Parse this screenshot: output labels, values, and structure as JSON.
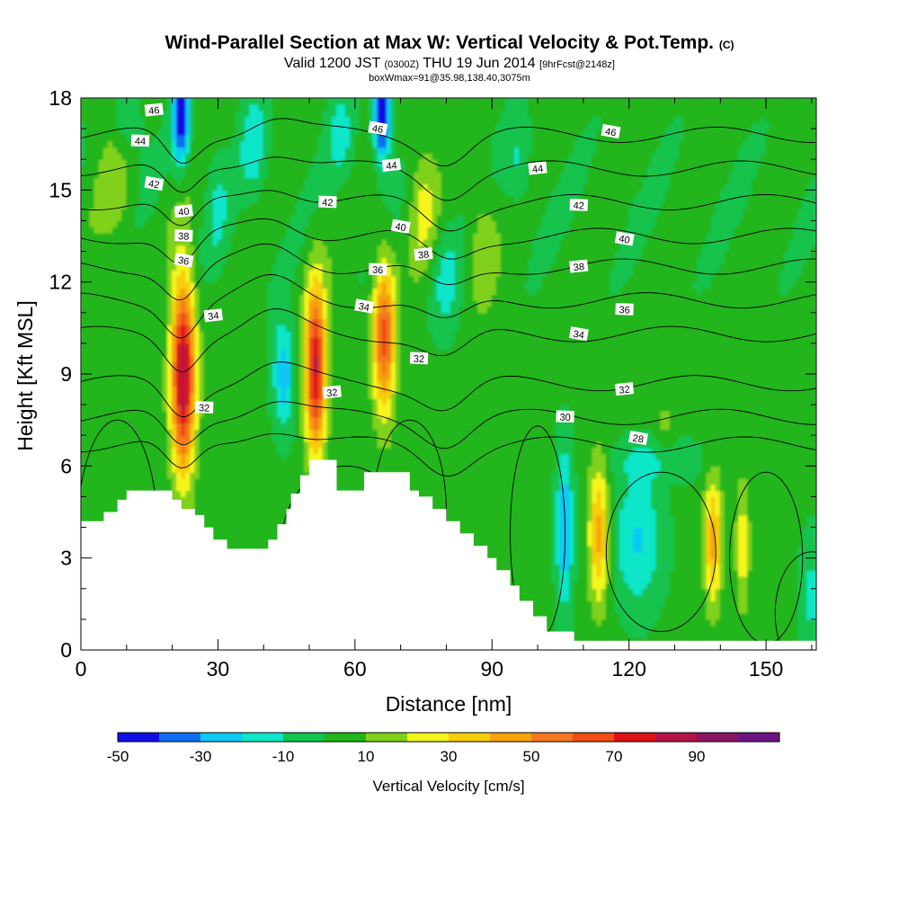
{
  "header": {
    "title_main": "Wind-Parallel Section at Max W: Vertical Velocity & Pot.Temp.",
    "title_suffix": "(C)",
    "valid_prefix": "Valid 1200 JST",
    "valid_zulu": "(0300Z)",
    "valid_date": "THU 19 Jun 2014",
    "forecast_info": "[9hrFcst@2148z]",
    "box_info": "boxWmax=91@35.98,138.40,3075m"
  },
  "chart_data": {
    "type": "contour",
    "xlabel": "Distance [nm]",
    "ylabel": "Height [Kft MSL]",
    "xlim": [
      0,
      161
    ],
    "ylim": [
      0,
      18
    ],
    "x_ticks": [
      0,
      30,
      60,
      90,
      120,
      150
    ],
    "y_ticks": [
      0,
      3,
      6,
      9,
      12,
      15,
      18
    ],
    "colorbar": {
      "label": "Vertical Velocity [cm/s]",
      "tick_labels": [
        "-50",
        "-30",
        "-10",
        "10",
        "30",
        "50",
        "70",
        "90"
      ],
      "levels": [
        -50,
        -40,
        -30,
        -20,
        -10,
        0,
        10,
        20,
        30,
        40,
        50,
        60,
        70,
        80,
        90,
        100
      ],
      "colors": [
        "#1010e6",
        "#0f6ef0",
        "#10c8f5",
        "#10e6c8",
        "#12c34e",
        "#22b51a",
        "#7fd11a",
        "#f5f51e",
        "#f7cd0c",
        "#f7a20c",
        "#f5781e",
        "#f04c14",
        "#dc1414",
        "#b41446",
        "#8c1464",
        "#6e1482"
      ]
    },
    "terrain_kft": [
      [
        0,
        4.2
      ],
      [
        5,
        4.5
      ],
      [
        8,
        4.9
      ],
      [
        10,
        5.2
      ],
      [
        19,
        5.2
      ],
      [
        20,
        4.9
      ],
      [
        22,
        4.6
      ],
      [
        25,
        4.4
      ],
      [
        27,
        4.0
      ],
      [
        29,
        3.6
      ],
      [
        32,
        3.3
      ],
      [
        39,
        3.3
      ],
      [
        41,
        3.6
      ],
      [
        43,
        4.1
      ],
      [
        45,
        4.6
      ],
      [
        46,
        5.1
      ],
      [
        48,
        5.7
      ],
      [
        50,
        6.2
      ],
      [
        55,
        6.2
      ],
      [
        56,
        5.2
      ],
      [
        61,
        5.2
      ],
      [
        62,
        5.8
      ],
      [
        71,
        5.8
      ],
      [
        72,
        5.2
      ],
      [
        74,
        5.0
      ],
      [
        77,
        4.6
      ],
      [
        80,
        4.2
      ],
      [
        83,
        3.8
      ],
      [
        86,
        3.4
      ],
      [
        89,
        3.0
      ],
      [
        91,
        2.6
      ],
      [
        94,
        2.1
      ],
      [
        96,
        1.6
      ],
      [
        99,
        1.1
      ],
      [
        102,
        0.6
      ],
      [
        107,
        0.6
      ],
      [
        108,
        0.3
      ],
      [
        161,
        0.3
      ]
    ],
    "updrafts": [
      {
        "x": 22.5,
        "y": 9.0,
        "max_cms": 85
      },
      {
        "x": 51.5,
        "y": 9.2,
        "max_cms": 75
      },
      {
        "x": 66.5,
        "y": 10.2,
        "max_cms": 58
      },
      {
        "x": 113.5,
        "y": 3.8,
        "max_cms": 40
      },
      {
        "x": 138.5,
        "y": 3.6,
        "max_cms": 38
      },
      {
        "x": 145.0,
        "y": 3.4,
        "max_cms": 25
      }
    ],
    "downdrafts": [
      {
        "x": 22.0,
        "y": 17.5,
        "min_cms": -45
      },
      {
        "x": 66.0,
        "y": 17.3,
        "min_cms": -50
      },
      {
        "x": 44.0,
        "y": 9.0,
        "min_cms": -28
      },
      {
        "x": 106.0,
        "y": 4.0,
        "min_cms": -30
      }
    ],
    "theta_contour_labels": [
      {
        "value": "46",
        "x": 16,
        "y": 17.6
      },
      {
        "value": "44",
        "x": 13,
        "y": 16.6
      },
      {
        "value": "42",
        "x": 16,
        "y": 15.2
      },
      {
        "value": "40",
        "x": 22.5,
        "y": 14.3
      },
      {
        "value": "38",
        "x": 22.5,
        "y": 13.5
      },
      {
        "value": "36",
        "x": 22.5,
        "y": 12.7
      },
      {
        "value": "34",
        "x": 29,
        "y": 10.9
      },
      {
        "value": "32",
        "x": 27,
        "y": 7.9
      },
      {
        "value": "46",
        "x": 65,
        "y": 17.0
      },
      {
        "value": "44",
        "x": 68,
        "y": 15.8
      },
      {
        "value": "42",
        "x": 54,
        "y": 14.6
      },
      {
        "value": "40",
        "x": 70,
        "y": 13.8
      },
      {
        "value": "38",
        "x": 75,
        "y": 12.9
      },
      {
        "value": "36",
        "x": 65,
        "y": 12.4
      },
      {
        "value": "34",
        "x": 62,
        "y": 11.2
      },
      {
        "value": "32",
        "x": 55,
        "y": 8.4
      },
      {
        "value": "32",
        "x": 74,
        "y": 9.5
      },
      {
        "value": "46",
        "x": 116,
        "y": 16.9
      },
      {
        "value": "44",
        "x": 100,
        "y": 15.7
      },
      {
        "value": "42",
        "x": 109,
        "y": 14.5
      },
      {
        "value": "40",
        "x": 119,
        "y": 13.4
      },
      {
        "value": "38",
        "x": 109,
        "y": 12.5
      },
      {
        "value": "36",
        "x": 119,
        "y": 11.1
      },
      {
        "value": "34",
        "x": 109,
        "y": 10.3
      },
      {
        "value": "32",
        "x": 119,
        "y": 8.5
      },
      {
        "value": "30",
        "x": 106,
        "y": 7.6
      },
      {
        "value": "28",
        "x": 122,
        "y": 6.9
      }
    ]
  }
}
